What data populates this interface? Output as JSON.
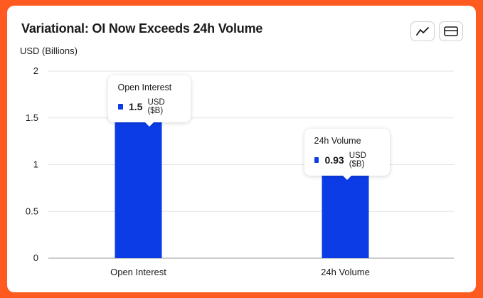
{
  "title": "Variational: OI Now Exceeds 24h Volume",
  "unit_label": "USD (Billions)",
  "toolbar": {
    "icons": [
      "line-chart-icon",
      "card-view-icon"
    ]
  },
  "colors": {
    "bar": "#0b3ce6",
    "background": "#ff5a1f",
    "grid": "#e3e3e3"
  },
  "tooltips": [
    {
      "name": "Open Interest",
      "value": "1.5",
      "unit": "USD ($B)"
    },
    {
      "name": "24h Volume",
      "value": "0.93",
      "unit": "USD ($B)"
    }
  ],
  "chart_data": {
    "type": "bar",
    "categories": [
      "Open Interest",
      "24h Volume"
    ],
    "values": [
      1.5,
      0.93
    ],
    "ylabel": "USD (Billions)",
    "ylim": [
      0,
      2
    ],
    "yticks": [
      "0",
      "0.5",
      "1",
      "1.5",
      "2"
    ],
    "grid": true
  }
}
